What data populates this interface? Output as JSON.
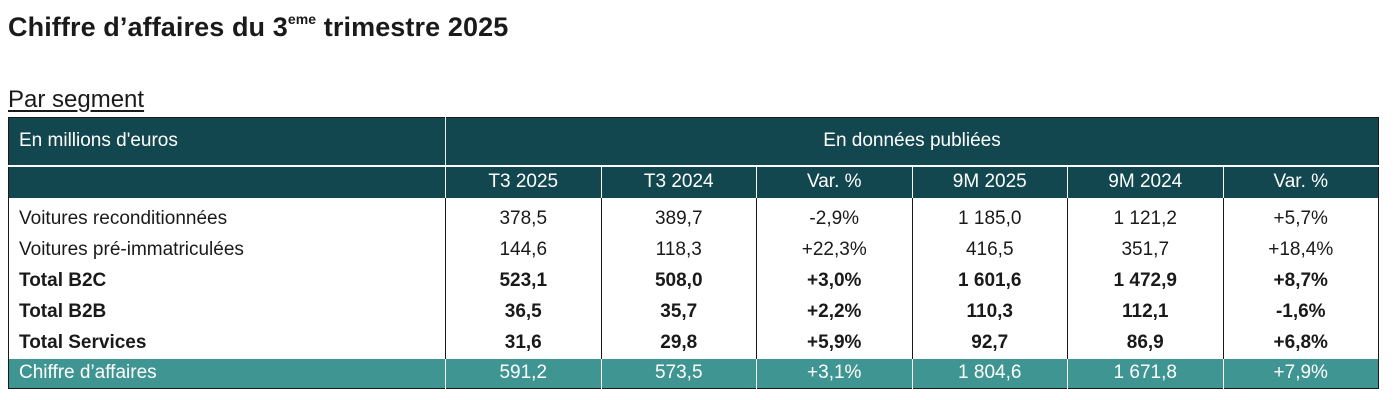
{
  "title": {
    "main": "Chiffre d’affaires du 3",
    "sup": "eme",
    "rest": " trimestre 2025"
  },
  "subtitle": "Par segment",
  "table": {
    "unit_label": "En millions d'euros",
    "group_header": "En données publiées",
    "columns": [
      "T3 2025",
      "T3 2024",
      "Var. %",
      "9M 2025",
      "9M 2024",
      "Var. %"
    ],
    "rows": [
      {
        "label": "Voitures reconditionnées",
        "bold": false,
        "values": [
          "378,5",
          "389,7",
          "-2,9%",
          "1 185,0",
          "1 121,2",
          "+5,7%"
        ]
      },
      {
        "label": "Voitures pré-immatriculées",
        "bold": false,
        "values": [
          "144,6",
          "118,3",
          "+22,3%",
          "416,5",
          "351,7",
          "+18,4%"
        ]
      },
      {
        "label": "Total B2C",
        "bold": true,
        "values": [
          "523,1",
          "508,0",
          "+3,0%",
          "1 601,6",
          "1 472,9",
          "+8,7%"
        ]
      },
      {
        "label": "Total B2B",
        "bold": true,
        "values": [
          "36,5",
          "35,7",
          "+2,2%",
          "110,3",
          "112,1",
          "-1,6%"
        ]
      },
      {
        "label": "Total Services",
        "bold": true,
        "values": [
          "31,6",
          "29,8",
          "+5,9%",
          "92,7",
          "86,9",
          "+6,8%"
        ]
      }
    ],
    "total": {
      "label": "Chiffre d’affaires",
      "values": [
        "591,2",
        "573,5",
        "+3,1%",
        "1 804,6",
        "1 671,8",
        "+7,9%"
      ]
    }
  },
  "colors": {
    "header": "#12474f",
    "total_row": "#3f9592"
  }
}
